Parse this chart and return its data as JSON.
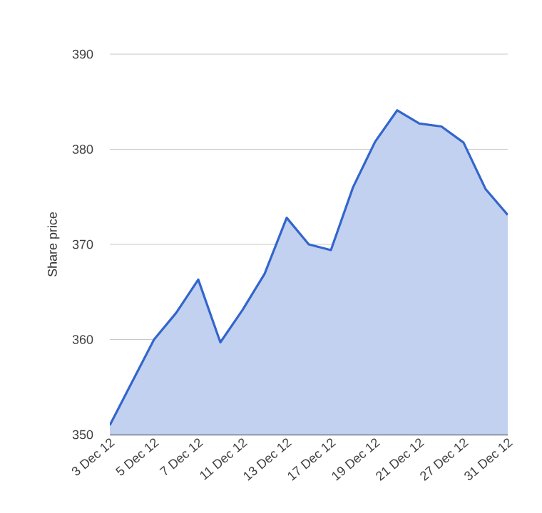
{
  "chart_data": {
    "type": "area",
    "ylabel": "Share price",
    "categories": [
      "3 Dec 12",
      null,
      "5 Dec 12",
      null,
      "7 Dec 12",
      null,
      "11 Dec 12",
      null,
      "13 Dec 12",
      null,
      "17 Dec 12",
      null,
      "19 Dec 12",
      null,
      "21 Dec 12",
      null,
      "27 Dec 12",
      null,
      "31 Dec 12"
    ],
    "series": [
      {
        "color": "#3366cc",
        "values": [
          351.0,
          355.5,
          360.0,
          362.8,
          366.3,
          359.7,
          363.1,
          366.9,
          372.8,
          370.0,
          369.4,
          376.0,
          380.8,
          384.1,
          382.7,
          382.4,
          380.7,
          375.8,
          373.1
        ]
      }
    ],
    "ylim": [
      350,
      390
    ],
    "yticks": [
      350,
      360,
      370,
      380,
      390
    ],
    "grid": "y",
    "marker": "none"
  }
}
